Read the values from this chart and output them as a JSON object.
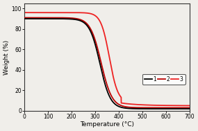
{
  "title": "",
  "xlabel": "Temperature (°C)",
  "ylabel": "Weight (%)",
  "xlim": [
    0,
    700
  ],
  "ylim": [
    0,
    105
  ],
  "xticks": [
    0,
    100,
    200,
    300,
    400,
    500,
    600,
    700
  ],
  "yticks": [
    0,
    20,
    40,
    60,
    80,
    100
  ],
  "curve1_color": "#000000",
  "curve2_color": "#bb0000",
  "curve3_color": "#ee2222",
  "legend_labels": [
    "1",
    "2",
    "3"
  ],
  "legend_colors": [
    "#000000",
    "#bb0000",
    "#ee2222"
  ],
  "background_color": "#f0eeea"
}
